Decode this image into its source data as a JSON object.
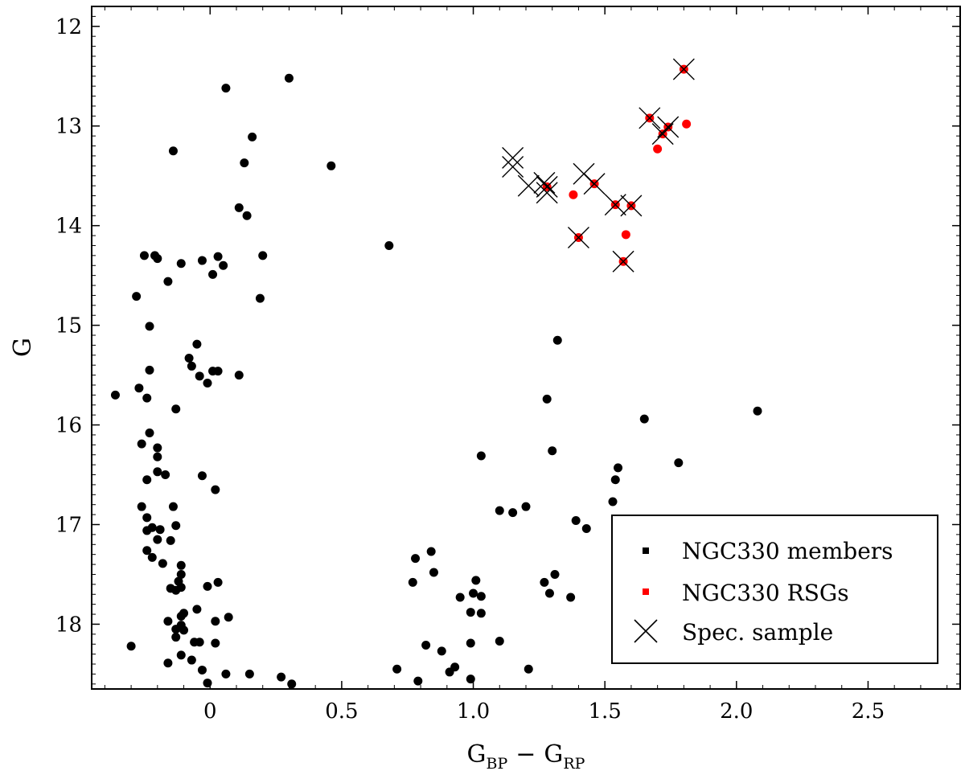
{
  "chart_data": {
    "type": "scatter",
    "xlabel": {
      "main": "G",
      "sub1": "BP",
      "minus": "−",
      "main2": "G",
      "sub2": "RP"
    },
    "ylabel": "G",
    "xlim": [
      -0.45,
      2.85
    ],
    "ylim": [
      18.65,
      11.8
    ],
    "y_inverted": true,
    "x_ticks": [
      0,
      0.5,
      1.0,
      1.5,
      2.0,
      2.5
    ],
    "x_tick_labels": [
      "0",
      "0.5",
      "1.0",
      "1.5",
      "2.0",
      "2.5"
    ],
    "y_ticks": [
      12,
      13,
      14,
      15,
      16,
      17,
      18
    ],
    "y_tick_labels": [
      "12",
      "13",
      "14",
      "15",
      "16",
      "17",
      "18"
    ],
    "grid": false,
    "legend_position": "bottom-right",
    "colors": {
      "members": "#000000",
      "rsg": "#ff0000",
      "spec": "#000000"
    },
    "series": [
      {
        "name": "NGC330 members",
        "marker": "dot",
        "points": [
          [
            0.3,
            12.52
          ],
          [
            0.06,
            12.62
          ],
          [
            0.16,
            13.11
          ],
          [
            -0.14,
            13.25
          ],
          [
            0.13,
            13.37
          ],
          [
            0.46,
            13.4
          ],
          [
            0.11,
            13.82
          ],
          [
            0.14,
            13.9
          ],
          [
            0.68,
            14.2
          ],
          [
            -0.25,
            14.3
          ],
          [
            -0.21,
            14.3
          ],
          [
            -0.2,
            14.33
          ],
          [
            -0.11,
            14.38
          ],
          [
            -0.03,
            14.35
          ],
          [
            0.03,
            14.31
          ],
          [
            0.05,
            14.4
          ],
          [
            0.2,
            14.3
          ],
          [
            0.01,
            14.49
          ],
          [
            -0.16,
            14.56
          ],
          [
            -0.28,
            14.71
          ],
          [
            0.19,
            14.73
          ],
          [
            -0.23,
            15.01
          ],
          [
            -0.05,
            15.19
          ],
          [
            -0.08,
            15.33
          ],
          [
            -0.07,
            15.41
          ],
          [
            -0.23,
            15.45
          ],
          [
            0.01,
            15.46
          ],
          [
            0.03,
            15.46
          ],
          [
            -0.04,
            15.51
          ],
          [
            0.11,
            15.5
          ],
          [
            -0.01,
            15.58
          ],
          [
            -0.36,
            15.7
          ],
          [
            -0.27,
            15.63
          ],
          [
            -0.24,
            15.73
          ],
          [
            -0.13,
            15.84
          ],
          [
            -0.23,
            16.08
          ],
          [
            -0.26,
            16.19
          ],
          [
            -0.2,
            16.23
          ],
          [
            -0.2,
            16.32
          ],
          [
            -0.2,
            16.47
          ],
          [
            -0.17,
            16.5
          ],
          [
            -0.24,
            16.55
          ],
          [
            -0.03,
            16.51
          ],
          [
            0.02,
            16.65
          ],
          [
            -0.26,
            16.82
          ],
          [
            -0.14,
            16.82
          ],
          [
            -0.24,
            16.93
          ],
          [
            -0.24,
            17.06
          ],
          [
            -0.22,
            17.03
          ],
          [
            -0.19,
            17.05
          ],
          [
            -0.13,
            17.01
          ],
          [
            -0.2,
            17.15
          ],
          [
            -0.15,
            17.16
          ],
          [
            -0.24,
            17.26
          ],
          [
            -0.22,
            17.33
          ],
          [
            -0.18,
            17.39
          ],
          [
            -0.11,
            17.41
          ],
          [
            -0.11,
            17.5
          ],
          [
            -0.12,
            17.57
          ],
          [
            -0.11,
            17.63
          ],
          [
            -0.15,
            17.64
          ],
          [
            -0.13,
            17.66
          ],
          [
            -0.01,
            17.62
          ],
          [
            0.03,
            17.58
          ],
          [
            -0.05,
            17.85
          ],
          [
            -0.1,
            17.89
          ],
          [
            -0.11,
            17.92
          ],
          [
            -0.16,
            17.97
          ],
          [
            -0.11,
            18.01
          ],
          [
            -0.13,
            18.05
          ],
          [
            -0.1,
            18.06
          ],
          [
            0.02,
            17.97
          ],
          [
            0.07,
            17.93
          ],
          [
            -0.13,
            18.13
          ],
          [
            -0.04,
            18.18
          ],
          [
            -0.06,
            18.18
          ],
          [
            0.02,
            18.19
          ],
          [
            -0.3,
            18.22
          ],
          [
            -0.11,
            18.31
          ],
          [
            -0.07,
            18.36
          ],
          [
            -0.16,
            18.39
          ],
          [
            -0.03,
            18.46
          ],
          [
            0.06,
            18.5
          ],
          [
            0.15,
            18.5
          ],
          [
            0.27,
            18.53
          ],
          [
            -0.01,
            18.59
          ],
          [
            0.31,
            18.6
          ],
          [
            1.32,
            15.15
          ],
          [
            1.28,
            15.74
          ],
          [
            1.03,
            16.31
          ],
          [
            1.3,
            16.26
          ],
          [
            1.65,
            15.94
          ],
          [
            2.08,
            15.86
          ],
          [
            1.55,
            16.43
          ],
          [
            1.54,
            16.55
          ],
          [
            1.53,
            16.77
          ],
          [
            1.78,
            16.38
          ],
          [
            1.1,
            16.86
          ],
          [
            1.15,
            16.88
          ],
          [
            1.2,
            16.82
          ],
          [
            1.39,
            16.96
          ],
          [
            1.43,
            17.04
          ],
          [
            0.84,
            17.27
          ],
          [
            0.78,
            17.34
          ],
          [
            0.85,
            17.48
          ],
          [
            0.77,
            17.58
          ],
          [
            1.01,
            17.56
          ],
          [
            1.27,
            17.58
          ],
          [
            1.31,
            17.5
          ],
          [
            0.95,
            17.73
          ],
          [
            1.0,
            17.69
          ],
          [
            1.03,
            17.72
          ],
          [
            1.29,
            17.69
          ],
          [
            1.37,
            17.73
          ],
          [
            0.99,
            17.88
          ],
          [
            1.03,
            17.89
          ],
          [
            0.82,
            18.21
          ],
          [
            0.88,
            18.27
          ],
          [
            0.99,
            18.19
          ],
          [
            1.1,
            18.17
          ],
          [
            0.93,
            18.43
          ],
          [
            0.91,
            18.48
          ],
          [
            0.71,
            18.45
          ],
          [
            0.99,
            18.55
          ],
          [
            1.21,
            18.45
          ],
          [
            0.79,
            18.57
          ]
        ]
      },
      {
        "name": "NGC330 RSGs",
        "marker": "red-dot",
        "points": [
          [
            1.8,
            12.43
          ],
          [
            1.67,
            12.92
          ],
          [
            1.74,
            13.01
          ],
          [
            1.72,
            13.08
          ],
          [
            1.81,
            12.98
          ],
          [
            1.7,
            13.23
          ],
          [
            1.28,
            13.61
          ],
          [
            1.46,
            13.58
          ],
          [
            1.38,
            13.69
          ],
          [
            1.54,
            13.79
          ],
          [
            1.6,
            13.8
          ],
          [
            1.4,
            14.12
          ],
          [
            1.58,
            14.09
          ],
          [
            1.57,
            14.36
          ]
        ]
      },
      {
        "name": "Spec. sample",
        "marker": "cross",
        "points": [
          [
            1.8,
            12.43
          ],
          [
            1.67,
            12.92
          ],
          [
            1.74,
            13.01
          ],
          [
            1.72,
            13.08
          ],
          [
            1.15,
            13.32
          ],
          [
            1.15,
            13.41
          ],
          [
            1.21,
            13.6
          ],
          [
            1.27,
            13.57
          ],
          [
            1.28,
            13.61
          ],
          [
            1.28,
            13.67
          ],
          [
            1.42,
            13.48
          ],
          [
            1.46,
            13.58
          ],
          [
            1.54,
            13.79
          ],
          [
            1.6,
            13.8
          ],
          [
            1.4,
            14.12
          ],
          [
            1.57,
            14.36
          ]
        ]
      }
    ]
  }
}
